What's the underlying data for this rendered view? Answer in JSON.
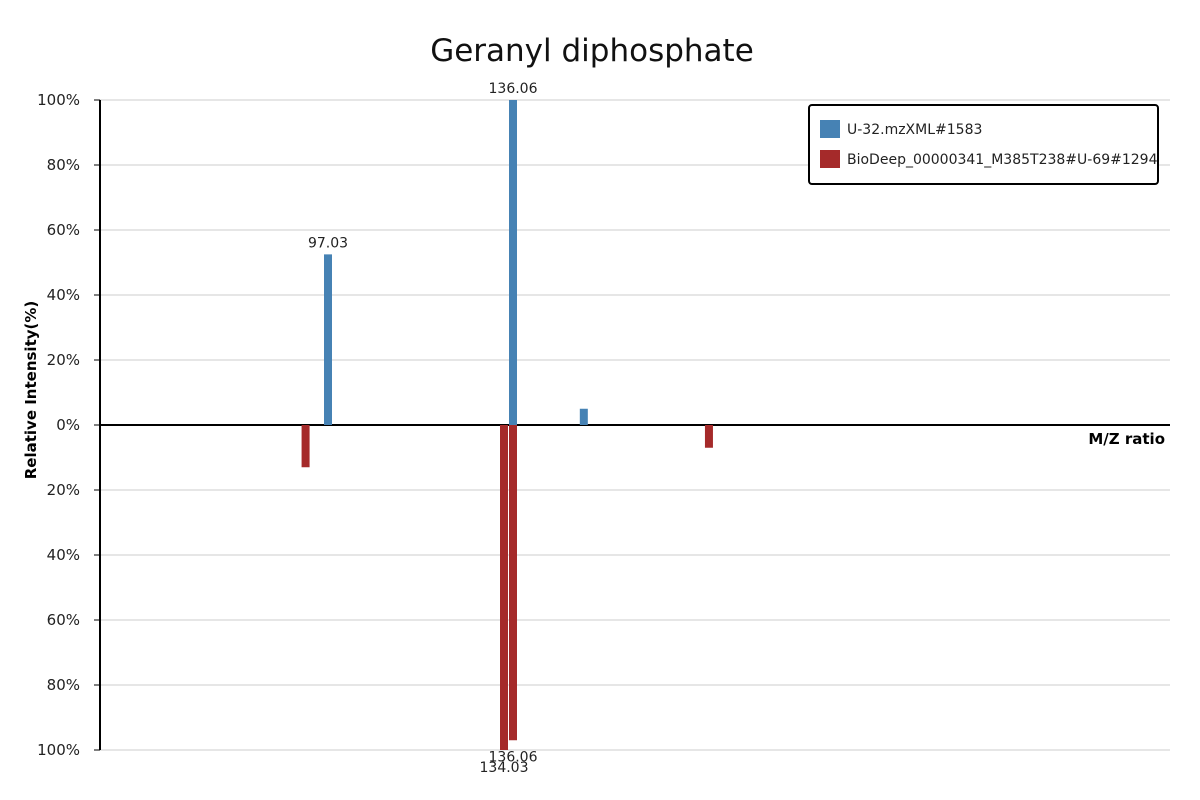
{
  "chart_data": {
    "type": "bar",
    "title": "Geranyl diphosphate",
    "xlabel": "M/Z ratio",
    "ylabel": "Relative Intensity(%)",
    "ylim": [
      -100,
      100
    ],
    "yticks": [
      {
        "value": 100,
        "label": "100%"
      },
      {
        "value": 80,
        "label": "80%"
      },
      {
        "value": 60,
        "label": "60%"
      },
      {
        "value": 40,
        "label": "40%"
      },
      {
        "value": 20,
        "label": "20%"
      },
      {
        "value": 0,
        "label": "0%"
      },
      {
        "value": -20,
        "label": "20%"
      },
      {
        "value": -40,
        "label": "40%"
      },
      {
        "value": -60,
        "label": "60%"
      },
      {
        "value": -80,
        "label": "80%"
      },
      {
        "value": -100,
        "label": "100%"
      }
    ],
    "grid": true,
    "legend_position": "top-right",
    "series": [
      {
        "name": "U-32.mzXML#1583",
        "color": "#4682b4",
        "direction": "up",
        "points": [
          {
            "mz": 97.03,
            "intensity": 52.5,
            "label": "97.03"
          },
          {
            "mz": 136.06,
            "intensity": 100,
            "label": "136.06"
          },
          {
            "mz": 151.0,
            "intensity": 5,
            "label": ""
          }
        ]
      },
      {
        "name": "BioDeep_00000341_M385T238#U-69#1294",
        "color": "#a52a2a",
        "direction": "down",
        "points": [
          {
            "mz": 92.3,
            "intensity": 13,
            "label": ""
          },
          {
            "mz": 134.03,
            "intensity": 100,
            "label": "134.03"
          },
          {
            "mz": 136.06,
            "intensity": 97,
            "label": "136.06"
          },
          {
            "mz": 177.4,
            "intensity": 7,
            "label": ""
          }
        ]
      }
    ]
  }
}
